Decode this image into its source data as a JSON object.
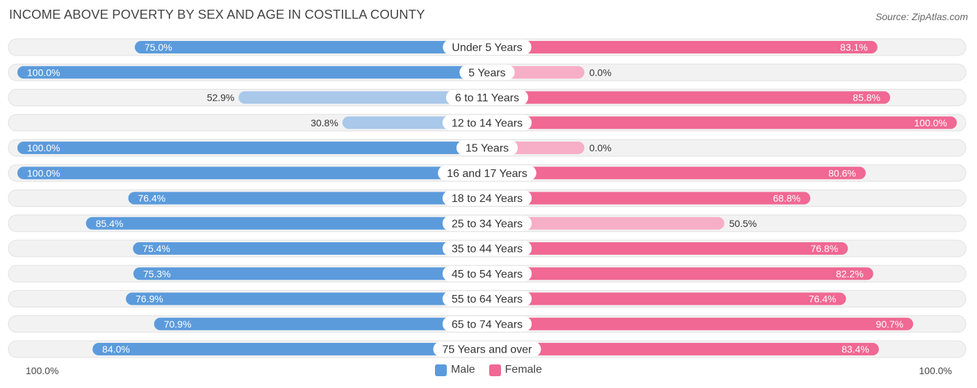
{
  "title": "INCOME ABOVE POVERTY BY SEX AND AGE IN COSTILLA COUNTY",
  "source": "Source: ZipAtlas.com",
  "axis": {
    "left_label": "100.0%",
    "right_label": "100.0%"
  },
  "legend": {
    "male_label": "Male",
    "female_label": "Female"
  },
  "colors": {
    "male_strong": "#5b9bdc",
    "male_light": "#a9c8ea",
    "female_strong": "#f06893",
    "female_light": "#f7aec7",
    "row_bg": "#f2f2f2",
    "row_border": "#e1e1e1"
  },
  "chart_data": {
    "type": "bar",
    "orientation": "horizontal-diverging",
    "title": "INCOME ABOVE POVERTY BY SEX AND AGE IN COSTILLA COUNTY",
    "unit": "%",
    "xlim": [
      0,
      100
    ],
    "categories": [
      "Under 5 Years",
      "5 Years",
      "6 to 11 Years",
      "12 to 14 Years",
      "15 Years",
      "16 and 17 Years",
      "18 to 24 Years",
      "25 to 34 Years",
      "35 to 44 Years",
      "45 to 54 Years",
      "55 to 64 Years",
      "65 to 74 Years",
      "75 Years and over"
    ],
    "series": [
      {
        "name": "Male",
        "values": [
          75.0,
          100.0,
          52.9,
          30.8,
          100.0,
          100.0,
          76.4,
          85.4,
          75.4,
          75.3,
          76.9,
          70.9,
          84.0
        ],
        "labels": [
          "75.0%",
          "100.0%",
          "52.9%",
          "30.8%",
          "100.0%",
          "100.0%",
          "76.4%",
          "85.4%",
          "75.4%",
          "75.3%",
          "76.9%",
          "70.9%",
          "84.0%"
        ]
      },
      {
        "name": "Female",
        "values": [
          83.1,
          0.0,
          85.8,
          100.0,
          0.0,
          80.6,
          68.8,
          50.5,
          76.8,
          82.2,
          76.4,
          90.7,
          83.4
        ],
        "labels": [
          "83.1%",
          "0.0%",
          "85.8%",
          "100.0%",
          "0.0%",
          "80.6%",
          "68.8%",
          "50.5%",
          "76.8%",
          "82.2%",
          "76.4%",
          "90.7%",
          "83.4%"
        ]
      }
    ]
  }
}
